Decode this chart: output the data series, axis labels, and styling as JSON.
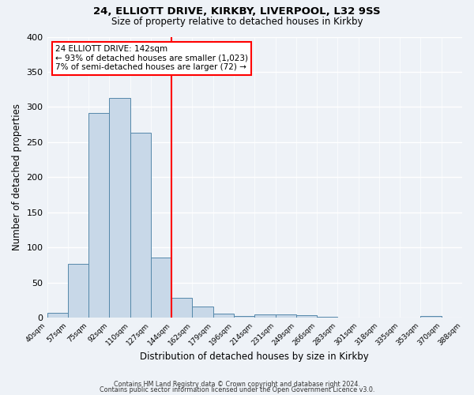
{
  "title1": "24, ELLIOTT DRIVE, KIRKBY, LIVERPOOL, L32 9SS",
  "title2": "Size of property relative to detached houses in Kirkby",
  "xlabel": "Distribution of detached houses by size in Kirkby",
  "ylabel": "Number of detached properties",
  "bin_labels": [
    "40sqm",
    "57sqm",
    "75sqm",
    "92sqm",
    "110sqm",
    "127sqm",
    "144sqm",
    "162sqm",
    "179sqm",
    "196sqm",
    "214sqm",
    "231sqm",
    "249sqm",
    "266sqm",
    "283sqm",
    "301sqm",
    "318sqm",
    "335sqm",
    "353sqm",
    "370sqm",
    "388sqm"
  ],
  "bar_values": [
    7,
    76,
    291,
    313,
    263,
    85,
    28,
    16,
    6,
    2,
    5,
    4,
    3,
    1,
    0,
    0,
    0,
    0,
    2,
    0
  ],
  "bar_color": "#c8d8e8",
  "bar_edge_color": "#5588aa",
  "vline_x_idx": 6,
  "vline_color": "red",
  "annotation_title": "24 ELLIOTT DRIVE: 142sqm",
  "annotation_line1": "← 93% of detached houses are smaller (1,023)",
  "annotation_line2": "7% of semi-detached houses are larger (72) →",
  "annotation_box_color": "white",
  "annotation_box_edge": "red",
  "ylim": [
    0,
    400
  ],
  "yticks": [
    0,
    50,
    100,
    150,
    200,
    250,
    300,
    350,
    400
  ],
  "footer1": "Contains HM Land Registry data © Crown copyright and database right 2024.",
  "footer2": "Contains public sector information licensed under the Open Government Licence v3.0.",
  "bg_color": "#eef2f7"
}
